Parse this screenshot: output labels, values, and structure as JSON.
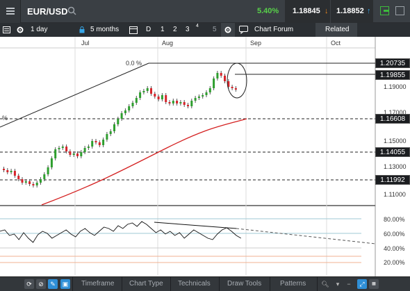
{
  "topbar": {
    "symbol": "EUR/USD",
    "change_pct": "5.40%",
    "bid": "1.18845",
    "ask": "1.18852"
  },
  "toolbar": {
    "interval": "1 day",
    "range": "5 months",
    "d_label": "D",
    "n1": "1",
    "n2": "2",
    "n3": "3",
    "n4": "4",
    "n5": "5",
    "chart_forum": "Chart Forum",
    "related": "Related"
  },
  "chart": {
    "months": [
      "Jul",
      "Aug",
      "Sep",
      "Oct"
    ],
    "fib_label_top": "0.0 %",
    "fib_label_left": "%",
    "price_boxes": [
      "1.20735",
      "1.19855",
      "1.16608",
      "1.14055",
      "1.11992"
    ],
    "axis_labels": [
      "1.19000",
      "1.17000",
      "1.15000",
      "1.13000",
      "1.11000"
    ],
    "rsi_labels": [
      "80.00%",
      "60.00%",
      "40.00%",
      "20.00%"
    ]
  },
  "bottombar": {
    "timeframe": "Timeframe",
    "chart_type": "Chart Type",
    "technicals": "Technicals",
    "draw_tools": "Draw Tools",
    "patterns": "Patterns"
  },
  "colors": {
    "up_candle": "#2e9e2e",
    "down_candle": "#d6242a",
    "ma_line": "#d42020",
    "positive": "#58d14a",
    "down_arrow": "#f28a1c",
    "up_arrow": "#37a6e8"
  },
  "icons": {
    "menu": "menu-icon",
    "search": "search-icon",
    "window": "window-icon"
  }
}
